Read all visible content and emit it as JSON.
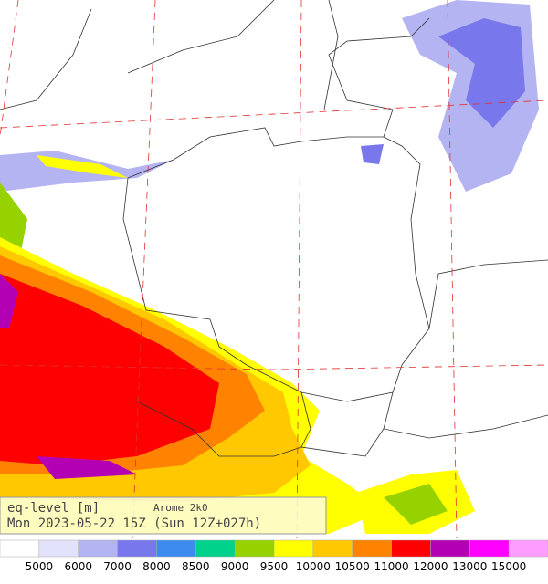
{
  "title": "eq-level [m]",
  "model": "Arome 2k0",
  "time": "Mon 2023-05-22 15Z (Sun 12Z+027h)",
  "legend": {
    "colors": [
      "#ffffff",
      "#e2e2fa",
      "#b4b4f2",
      "#7878ec",
      "#3c8cf0",
      "#00d28c",
      "#96d200",
      "#ffff00",
      "#ffc800",
      "#ff8200",
      "#ff0000",
      "#b400b4",
      "#ff00ff",
      "#ff9cff"
    ],
    "labels": [
      "5000",
      "6000",
      "7000",
      "8000",
      "8500",
      "9000",
      "9500",
      "10000",
      "10500",
      "11000",
      "12000",
      "13000",
      "15000"
    ]
  }
}
